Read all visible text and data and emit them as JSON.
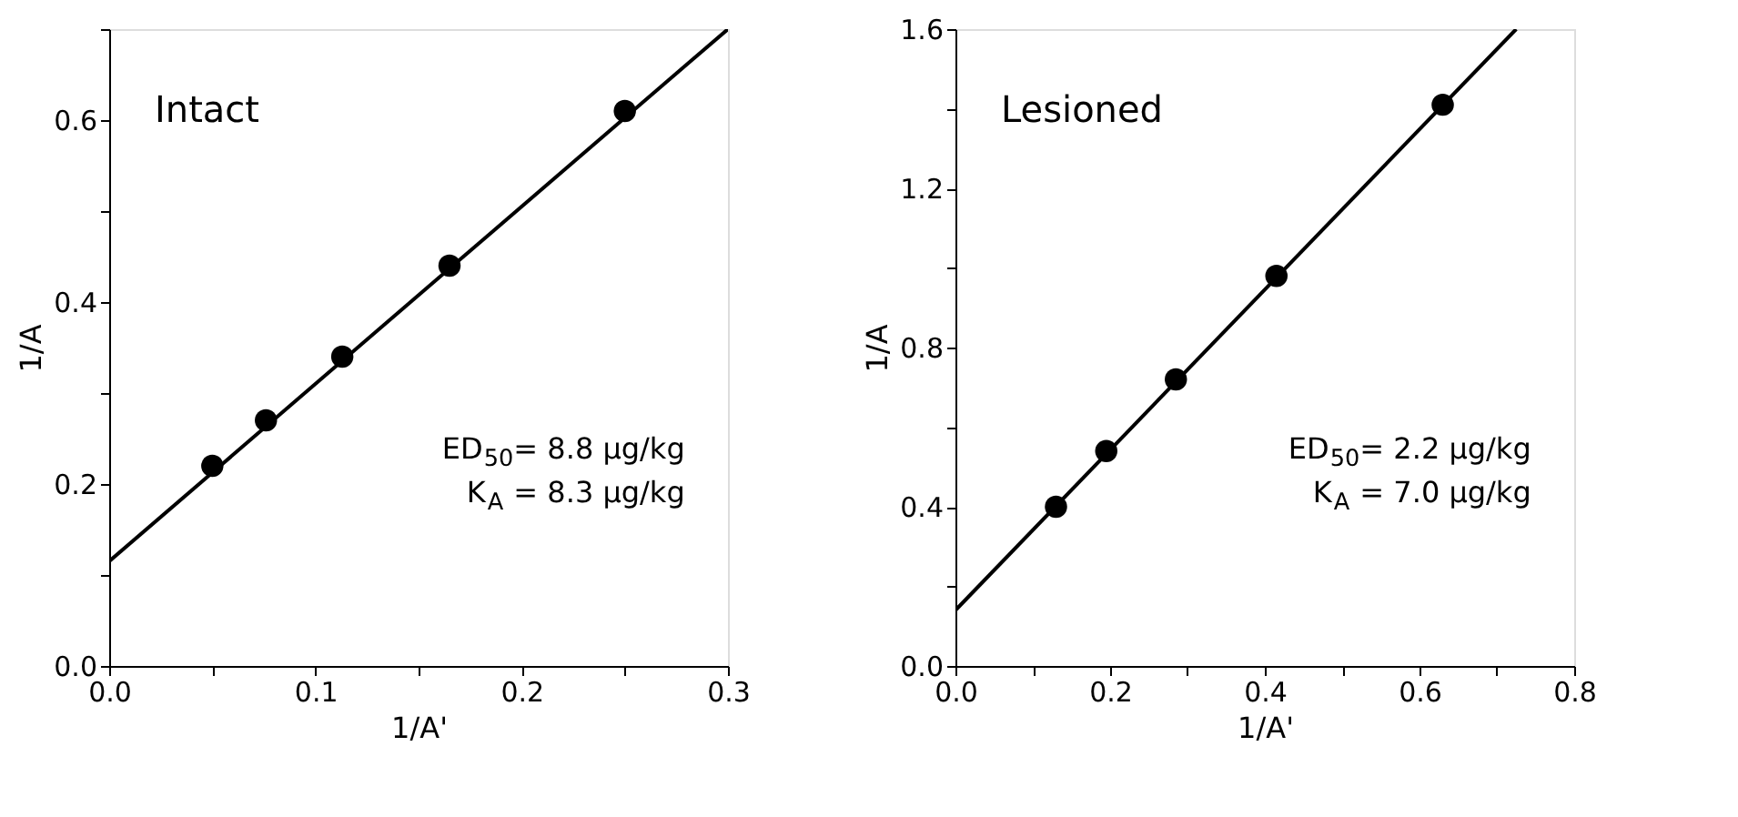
{
  "chart_data": [
    {
      "type": "scatter",
      "xlabel": "1/A'",
      "ylabel": "1/A",
      "xlim": [
        0,
        0.3
      ],
      "ylim": [
        0,
        0.7
      ],
      "xticks": [
        {
          "value": 0,
          "label": "0.0"
        },
        {
          "value": 0.05,
          "label": null
        },
        0.1,
        {
          "value": 0.15,
          "label": null
        },
        0.2,
        {
          "value": 0.25,
          "label": null
        },
        0.3
      ],
      "yticks": [
        {
          "value": 0,
          "label": "0.0"
        },
        {
          "value": 0.1,
          "label": null
        },
        0.2,
        {
          "value": 0.3,
          "label": null
        },
        0.4,
        {
          "value": 0.5,
          "label": null
        },
        0.6,
        {
          "value": 0.7,
          "label": null
        }
      ],
      "grid": false,
      "annotations": [
        "Intact",
        "ED$_{50}$= 8.8 μg/kg",
        "K$_{A}$ = 8.3 μg/kg"
      ],
      "series": [
        {
          "marker": "circle",
          "color": "#000000",
          "x": [
            0.05,
            0.076,
            0.113,
            0.165,
            0.25
          ],
          "values": [
            0.22,
            0.27,
            0.34,
            0.44,
            0.61
          ]
        },
        {
          "type": "line",
          "line_style": "solid",
          "color": "#000000",
          "x": [
            0,
            0.3
          ],
          "values": [
            0.115,
            0.7
          ]
        }
      ]
    },
    {
      "type": "scatter",
      "xlabel": "1/A'",
      "ylabel": "1/A",
      "xlim": [
        0,
        0.8
      ],
      "ylim": [
        0,
        1.6
      ],
      "xticks": [
        {
          "value": 0,
          "label": "0.0"
        },
        {
          "value": 0.1,
          "label": null
        },
        0.2,
        {
          "value": 0.3,
          "label": null
        },
        0.4,
        {
          "value": 0.5,
          "label": null
        },
        0.6,
        {
          "value": 0.7,
          "label": null
        },
        0.8
      ],
      "yticks": [
        {
          "value": 0,
          "label": "0.0"
        },
        {
          "value": 0.2,
          "label": null
        },
        0.4,
        {
          "value": 0.6,
          "label": null
        },
        0.8,
        {
          "value": 1.0,
          "label": null
        },
        1.2,
        {
          "value": 1.4,
          "label": null
        },
        1.6
      ],
      "grid": false,
      "annotations": [
        "Lesioned",
        "ED$_{50}$= 2.2 μg/kg",
        "K$_{A}$ = 7.0 μg/kg"
      ],
      "series": [
        {
          "marker": "circle",
          "color": "#000000",
          "x": [
            0.13,
            0.195,
            0.285,
            0.415,
            0.63
          ],
          "values": [
            0.4,
            0.54,
            0.72,
            0.98,
            1.41
          ]
        },
        {
          "type": "line",
          "line_style": "solid",
          "color": "#000000",
          "x": [
            0,
            0.725
          ],
          "values": [
            0.14,
            1.6
          ]
        }
      ]
    }
  ]
}
